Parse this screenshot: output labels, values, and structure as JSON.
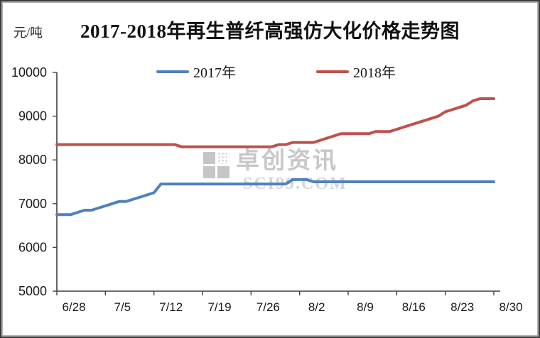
{
  "chart": {
    "title": "2017-2018年再生普纤高强仿大化价格走势图",
    "unit": "元/吨",
    "legend": [
      {
        "label": "2017年",
        "color": "#4F81BD"
      },
      {
        "label": "2018年",
        "color": "#C0504D"
      }
    ]
  },
  "watermark": {
    "cn": "卓创资讯",
    "en": "SCI99.COM"
  },
  "chart_data": {
    "type": "line",
    "title": "2017-2018年再生普纤高强仿大化价格走势图",
    "ylabel": "元/吨",
    "ylim": [
      5000,
      10000
    ],
    "y_ticks": [
      5000,
      6000,
      7000,
      8000,
      9000,
      10000
    ],
    "x_tick_labels": [
      "6/28",
      "7/5",
      "7/12",
      "7/19",
      "7/26",
      "8/2",
      "8/9",
      "8/16",
      "8/23",
      "8/30"
    ],
    "grid": false,
    "legend_position": "top",
    "x": [
      "6/28",
      "6/29",
      "6/30",
      "7/1",
      "7/2",
      "7/3",
      "7/4",
      "7/5",
      "7/6",
      "7/7",
      "7/8",
      "7/9",
      "7/10",
      "7/11",
      "7/12",
      "7/13",
      "7/14",
      "7/15",
      "7/16",
      "7/17",
      "7/18",
      "7/19",
      "7/20",
      "7/21",
      "7/22",
      "7/23",
      "7/24",
      "7/25",
      "7/26",
      "7/27",
      "7/28",
      "7/29",
      "7/30",
      "7/31",
      "8/1",
      "8/2",
      "8/3",
      "8/4",
      "8/5",
      "8/6",
      "8/7",
      "8/8",
      "8/9",
      "8/10",
      "8/11",
      "8/12",
      "8/13",
      "8/14",
      "8/15",
      "8/16",
      "8/17",
      "8/18",
      "8/19",
      "8/20",
      "8/21",
      "8/22",
      "8/23",
      "8/24",
      "8/25",
      "8/26",
      "8/27",
      "8/28",
      "8/29",
      "8/30"
    ],
    "series": [
      {
        "name": "2017年",
        "color": "#4F81BD",
        "values": [
          6750,
          6750,
          6750,
          6800,
          6850,
          6850,
          6900,
          6950,
          7000,
          7050,
          7050,
          7100,
          7150,
          7200,
          7250,
          7450,
          7450,
          7450,
          7450,
          7450,
          7450,
          7450,
          7450,
          7450,
          7450,
          7450,
          7450,
          7450,
          7450,
          7450,
          7450,
          7450,
          7450,
          7450,
          7550,
          7550,
          7550,
          7500,
          7500,
          7500,
          7500,
          7500,
          7500,
          7500,
          7500,
          7500,
          7500,
          7500,
          7500,
          7500,
          7500,
          7500,
          7500,
          7500,
          7500,
          7500,
          7500,
          7500,
          7500,
          7500,
          7500,
          7500,
          7500,
          7500
        ]
      },
      {
        "name": "2018年",
        "color": "#C0504D",
        "values": [
          8350,
          8350,
          8350,
          8350,
          8350,
          8350,
          8350,
          8350,
          8350,
          8350,
          8350,
          8350,
          8350,
          8350,
          8350,
          8350,
          8350,
          8350,
          8300,
          8300,
          8300,
          8300,
          8300,
          8300,
          8300,
          8300,
          8300,
          8300,
          8300,
          8300,
          8300,
          8300,
          8350,
          8350,
          8400,
          8400,
          8400,
          8400,
          8450,
          8500,
          8550,
          8600,
          8600,
          8600,
          8600,
          8600,
          8650,
          8650,
          8650,
          8700,
          8750,
          8800,
          8850,
          8900,
          8950,
          9000,
          9100,
          9150,
          9200,
          9250,
          9350,
          9400,
          9400,
          9400
        ]
      }
    ]
  }
}
